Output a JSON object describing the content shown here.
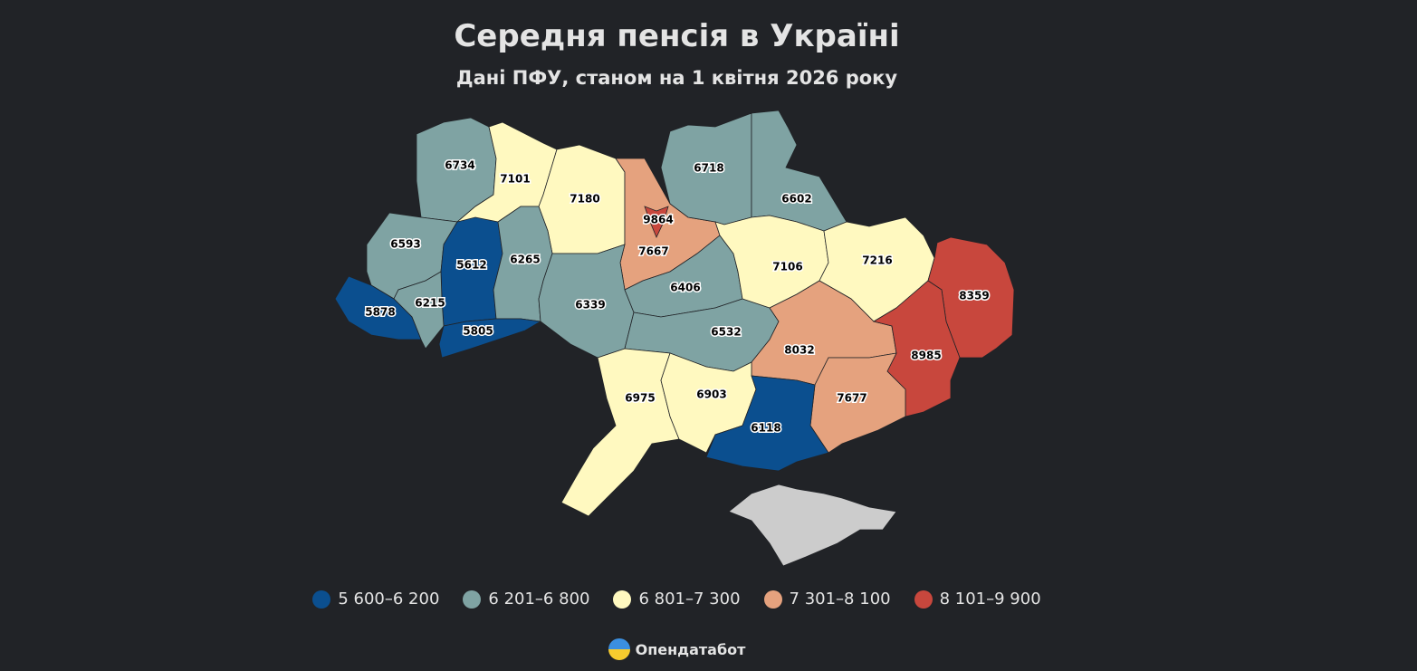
{
  "header": {
    "title": "Середня пенсія в Україні",
    "subtitle": "Дані ПФУ, станом на 1 квітня 2026 року"
  },
  "map": {
    "regions": [
      {
        "value": 6734,
        "color": "#7fa3a3"
      },
      {
        "value": 7101,
        "color": "#fff9c0"
      },
      {
        "value": 7180,
        "color": "#fff9c0"
      },
      {
        "value": 7667,
        "color": "#e5a27e"
      },
      {
        "value": 9864,
        "color": "#c8473d"
      },
      {
        "value": 6718,
        "color": "#7fa3a3"
      },
      {
        "value": 6602,
        "color": "#7fa3a3"
      },
      {
        "value": 6593,
        "color": "#7fa3a3"
      },
      {
        "value": 5612,
        "color": "#0b4f8f"
      },
      {
        "value": 6265,
        "color": "#7fa3a3"
      },
      {
        "value": 6215,
        "color": "#7fa3a3"
      },
      {
        "value": 5878,
        "color": "#0b4f8f"
      },
      {
        "value": 5805,
        "color": "#0b4f8f"
      },
      {
        "value": 6339,
        "color": "#7fa3a3"
      },
      {
        "value": 6406,
        "color": "#7fa3a3"
      },
      {
        "value": 6532,
        "color": "#7fa3a3"
      },
      {
        "value": 7106,
        "color": "#fff9c0"
      },
      {
        "value": 7216,
        "color": "#fff9c0"
      },
      {
        "value": 8032,
        "color": "#e5a27e"
      },
      {
        "value": 8359,
        "color": "#c8473d"
      },
      {
        "value": 8985,
        "color": "#c8473d"
      },
      {
        "value": 6975,
        "color": "#fff9c0"
      },
      {
        "value": 6903,
        "color": "#fff9c0"
      },
      {
        "value": 7677,
        "color": "#e5a27e"
      },
      {
        "value": 6118,
        "color": "#0b4f8f"
      },
      {
        "value": null,
        "color": "#cccccc"
      }
    ]
  },
  "legend": [
    {
      "label": "5 600–6 200",
      "color": "#0b4f8f"
    },
    {
      "label": "6 201–6 800",
      "color": "#7fa3a3"
    },
    {
      "label": "6 801–7 300",
      "color": "#fff9c0"
    },
    {
      "label": "7 301–8 100",
      "color": "#e5a27e"
    },
    {
      "label": "8 101–9 900",
      "color": "#c8473d"
    }
  ],
  "footer": {
    "brand": "Опендатабот"
  }
}
